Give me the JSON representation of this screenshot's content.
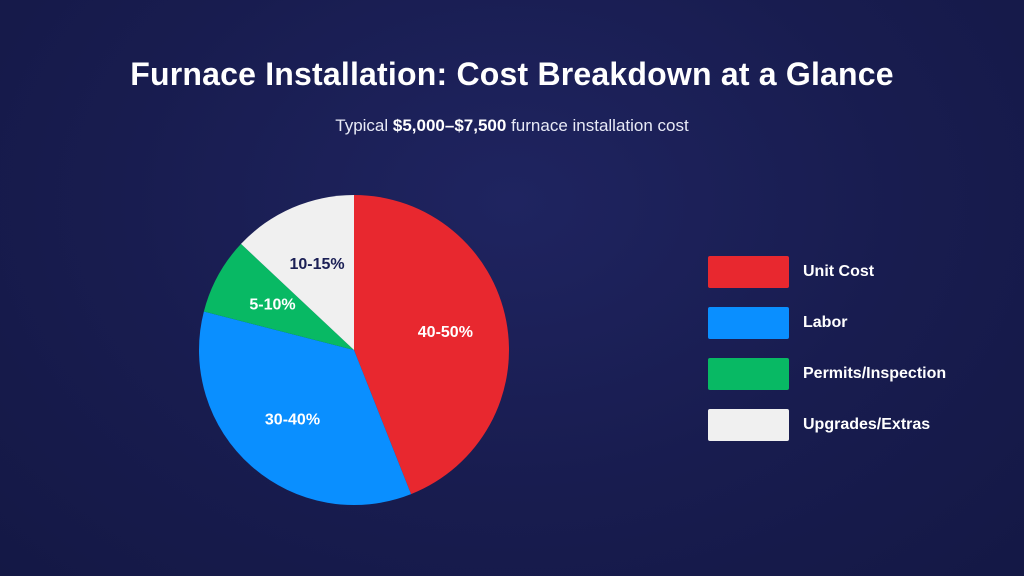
{
  "header": {
    "title": "Furnace Installation: Cost Breakdown at a Glance",
    "subtitle_prefix": "Typical ",
    "subtitle_bold": "$5,000–$7,500",
    "subtitle_suffix": " furnace installation cost"
  },
  "chart_data": {
    "type": "pie",
    "title": "Furnace Installation: Cost Breakdown at a Glance",
    "subtitle": "Typical $5,000–$7,500 furnace installation cost",
    "legend_position": "right",
    "slices": [
      {
        "name": "Unit Cost",
        "label": "40-50%",
        "value": 44,
        "color": "#e8282f",
        "label_color": "#ffffff"
      },
      {
        "name": "Labor",
        "label": "30-40%",
        "value": 35,
        "color": "#0a8fff",
        "label_color": "#ffffff"
      },
      {
        "name": "Permits/Inspection",
        "label": "5-10%",
        "value": 8,
        "color": "#08b964",
        "label_color": "#ffffff"
      },
      {
        "name": "Upgrades/Extras",
        "label": "10-15%",
        "value": 13,
        "color": "#f0f0f0",
        "label_color": "#1b1f55"
      }
    ]
  }
}
